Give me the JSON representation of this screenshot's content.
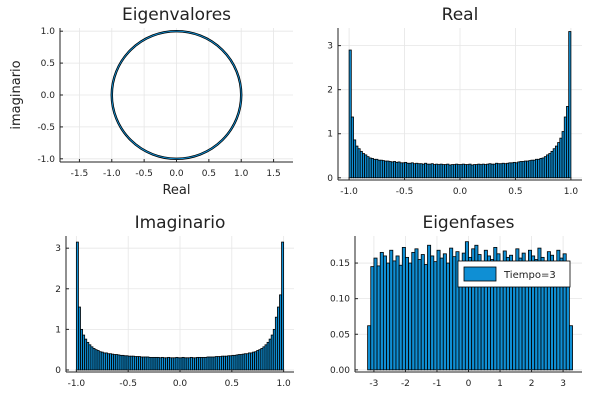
{
  "chart_data": [
    {
      "id": "eig",
      "type": "scatter",
      "title": "Eigenvalores",
      "xlabel": "Real",
      "ylabel": "imaginario",
      "xlim": [
        -1.8,
        1.8
      ],
      "ylim": [
        -1.05,
        1.05
      ],
      "xticks": [
        -1.5,
        -1.0,
        -0.5,
        0.0,
        0.5,
        1.0,
        1.5
      ],
      "xtick_labels": [
        "-1.5",
        "-1.0",
        "-0.5",
        "0.0",
        "0.5",
        "1.0",
        "1.5"
      ],
      "yticks": [
        -1.0,
        -0.5,
        0.0,
        0.5,
        1.0
      ],
      "ytick_labels": [
        "-1.0",
        "-0.5",
        "0.0",
        "0.5",
        "1.0"
      ],
      "series": [
        {
          "shape": "unit-circle",
          "radius": 1.0,
          "color": "#0f8fd4"
        }
      ]
    },
    {
      "id": "real",
      "type": "bar",
      "title": "Real",
      "xlim": [
        -1.1,
        1.1
      ],
      "ylim": [
        -0.05,
        3.4
      ],
      "xticks": [
        -1.0,
        -0.5,
        0.0,
        0.5,
        1.0
      ],
      "xtick_labels": [
        "-1.0",
        "-0.5",
        "0.0",
        "0.5",
        "1.0"
      ],
      "yticks": [
        0,
        1,
        2,
        3
      ],
      "ytick_labels": [
        "0",
        "1",
        "2",
        "3"
      ],
      "bin_start": -1.0,
      "bin_width": 0.02,
      "values": [
        2.9,
        1.38,
        0.86,
        0.72,
        0.66,
        0.6,
        0.55,
        0.52,
        0.48,
        0.45,
        0.44,
        0.42,
        0.42,
        0.4,
        0.4,
        0.39,
        0.38,
        0.38,
        0.37,
        0.36,
        0.37,
        0.35,
        0.36,
        0.34,
        0.34,
        0.35,
        0.33,
        0.33,
        0.34,
        0.32,
        0.33,
        0.32,
        0.32,
        0.31,
        0.33,
        0.31,
        0.31,
        0.32,
        0.3,
        0.31,
        0.3,
        0.31,
        0.3,
        0.3,
        0.31,
        0.29,
        0.3,
        0.3,
        0.31,
        0.3,
        0.3,
        0.31,
        0.3,
        0.3,
        0.31,
        0.29,
        0.3,
        0.3,
        0.31,
        0.3,
        0.31,
        0.3,
        0.31,
        0.32,
        0.31,
        0.31,
        0.33,
        0.32,
        0.32,
        0.33,
        0.32,
        0.33,
        0.34,
        0.34,
        0.35,
        0.34,
        0.36,
        0.37,
        0.37,
        0.38,
        0.38,
        0.39,
        0.4,
        0.4,
        0.42,
        0.42,
        0.44,
        0.45,
        0.48,
        0.52,
        0.55,
        0.6,
        0.66,
        0.72,
        0.8,
        0.9,
        1.05,
        1.38,
        1.62,
        3.32
      ]
    },
    {
      "id": "imag",
      "type": "bar",
      "title": "Imaginario",
      "xlim": [
        -1.1,
        1.1
      ],
      "ylim": [
        -0.05,
        3.3
      ],
      "xticks": [
        -1.0,
        -0.5,
        0.0,
        0.5,
        1.0
      ],
      "xtick_labels": [
        "-1.0",
        "-0.5",
        "0.0",
        "0.5",
        "1.0"
      ],
      "yticks": [
        0,
        1,
        2,
        3
      ],
      "ytick_labels": [
        "0",
        "1",
        "2",
        "3"
      ],
      "bin_start": -1.0,
      "bin_width": 0.02,
      "values": [
        3.15,
        1.55,
        1.0,
        0.86,
        0.76,
        0.68,
        0.62,
        0.57,
        0.53,
        0.5,
        0.48,
        0.45,
        0.44,
        0.42,
        0.42,
        0.4,
        0.4,
        0.39,
        0.38,
        0.38,
        0.37,
        0.36,
        0.36,
        0.35,
        0.35,
        0.34,
        0.34,
        0.34,
        0.33,
        0.33,
        0.33,
        0.32,
        0.32,
        0.32,
        0.32,
        0.31,
        0.31,
        0.31,
        0.31,
        0.31,
        0.3,
        0.31,
        0.3,
        0.3,
        0.31,
        0.3,
        0.3,
        0.3,
        0.31,
        0.3,
        0.3,
        0.31,
        0.3,
        0.3,
        0.3,
        0.31,
        0.3,
        0.3,
        0.31,
        0.31,
        0.31,
        0.31,
        0.31,
        0.32,
        0.32,
        0.32,
        0.32,
        0.33,
        0.33,
        0.33,
        0.34,
        0.34,
        0.34,
        0.35,
        0.35,
        0.36,
        0.36,
        0.37,
        0.38,
        0.38,
        0.39,
        0.4,
        0.4,
        0.42,
        0.42,
        0.44,
        0.45,
        0.48,
        0.5,
        0.53,
        0.57,
        0.62,
        0.68,
        0.76,
        0.86,
        1.0,
        1.3,
        1.55,
        1.85,
        3.15
      ]
    },
    {
      "id": "fase",
      "type": "bar",
      "title": "Eigenfases",
      "xlim": [
        -3.6,
        3.6
      ],
      "ylim": [
        -0.003,
        0.188
      ],
      "xticks": [
        -3,
        -2,
        -1,
        0,
        1,
        2,
        3
      ],
      "xtick_labels": [
        "-3",
        "-2",
        "-1",
        "0",
        "1",
        "2",
        "3"
      ],
      "yticks": [
        0.0,
        0.05,
        0.1,
        0.15
      ],
      "ytick_labels": [
        "0.00",
        "0.05",
        "0.10",
        "0.15"
      ],
      "bin_start": -3.2,
      "bin_width": 0.1,
      "values": [
        0.062,
        0.145,
        0.157,
        0.146,
        0.165,
        0.16,
        0.15,
        0.168,
        0.153,
        0.16,
        0.147,
        0.172,
        0.158,
        0.15,
        0.165,
        0.17,
        0.155,
        0.162,
        0.148,
        0.175,
        0.16,
        0.152,
        0.168,
        0.157,
        0.163,
        0.15,
        0.171,
        0.159,
        0.166,
        0.148,
        0.164,
        0.18,
        0.158,
        0.17,
        0.175,
        0.162,
        0.151,
        0.168,
        0.16,
        0.155,
        0.172,
        0.163,
        0.15,
        0.167,
        0.158,
        0.161,
        0.149,
        0.17,
        0.157,
        0.164,
        0.152,
        0.168,
        0.16,
        0.155,
        0.171,
        0.158,
        0.153,
        0.166,
        0.161,
        0.15,
        0.168,
        0.157,
        0.163,
        0.148,
        0.062
      ],
      "legend": {
        "label": "Tiempo=3",
        "position": "top-right"
      }
    }
  ],
  "colors": {
    "series": "#0f8fd4",
    "axis": "#222222",
    "grid": "#e6e6e6"
  }
}
